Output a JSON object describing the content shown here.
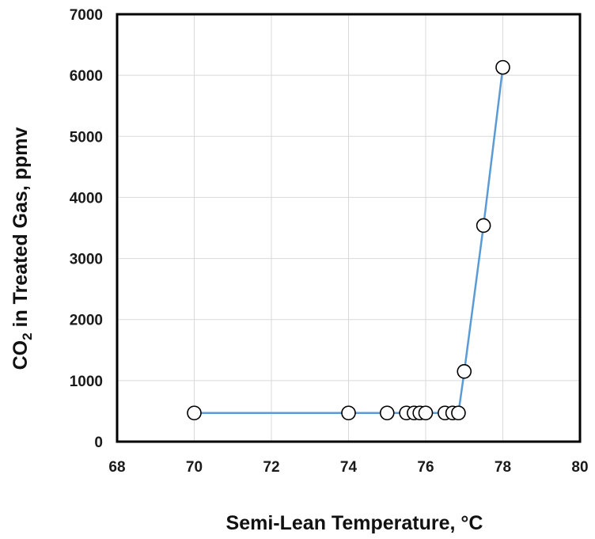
{
  "chart_data": {
    "type": "line",
    "title": "",
    "xlabel": "Semi-Lean Temperature, °C",
    "ylabel": {
      "part1": "CO",
      "subscript": "2",
      "part2": " in Treated Gas, ppmv"
    },
    "xlim": [
      68,
      80
    ],
    "ylim": [
      0,
      7000
    ],
    "xticks": [
      68,
      70,
      72,
      74,
      76,
      78,
      80
    ],
    "yticks": [
      0,
      1000,
      2000,
      3000,
      4000,
      5000,
      6000,
      7000
    ],
    "grid": true,
    "legend": "none",
    "line_color": "#5b9bd5",
    "marker": "open-circle",
    "series": [
      {
        "x": [
          70,
          74,
          75,
          75.5,
          75.7,
          75.85,
          76,
          76.5,
          76.7,
          76.85,
          77,
          77.5,
          78
        ],
        "y": [
          470,
          470,
          470,
          470,
          470,
          470,
          470,
          470,
          470,
          470,
          1150,
          3540,
          6130
        ]
      }
    ]
  }
}
